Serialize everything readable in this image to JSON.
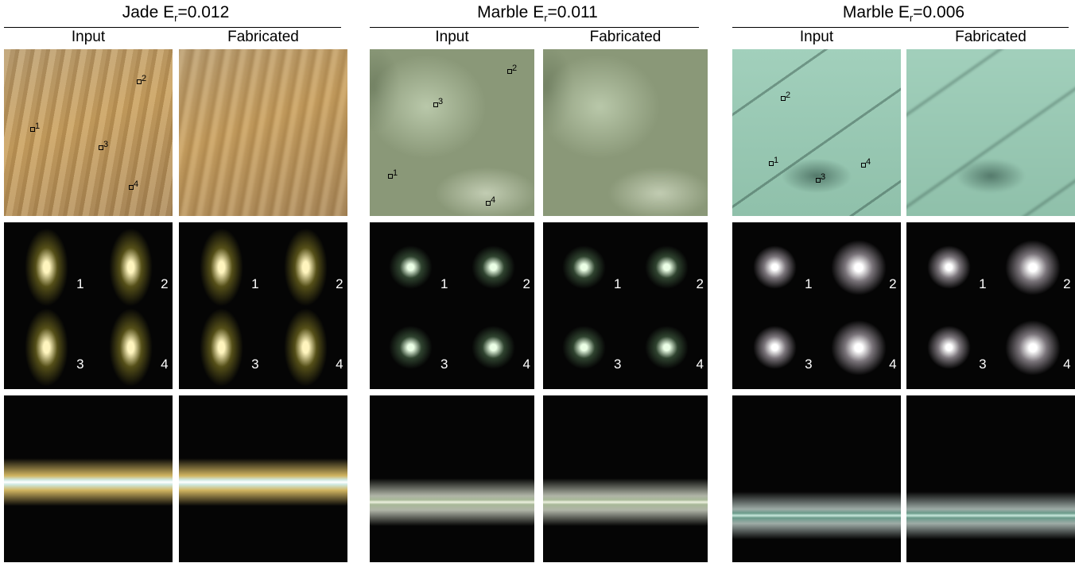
{
  "groups": [
    {
      "material": "Jade E",
      "subscript": "r",
      "error": "=0.012",
      "columns": [
        "Input",
        "Fabricated"
      ],
      "markers": [
        "1",
        "2",
        "3",
        "4"
      ]
    },
    {
      "material": "Marble E",
      "subscript": "r",
      "error": "=0.011",
      "columns": [
        "Input",
        "Fabricated"
      ],
      "markers": [
        "1",
        "2",
        "3",
        "4"
      ]
    },
    {
      "material": "Marble E",
      "subscript": "r",
      "error": "=0.006",
      "columns": [
        "Input",
        "Fabricated"
      ],
      "markers": [
        "1",
        "2",
        "3",
        "4"
      ]
    }
  ]
}
